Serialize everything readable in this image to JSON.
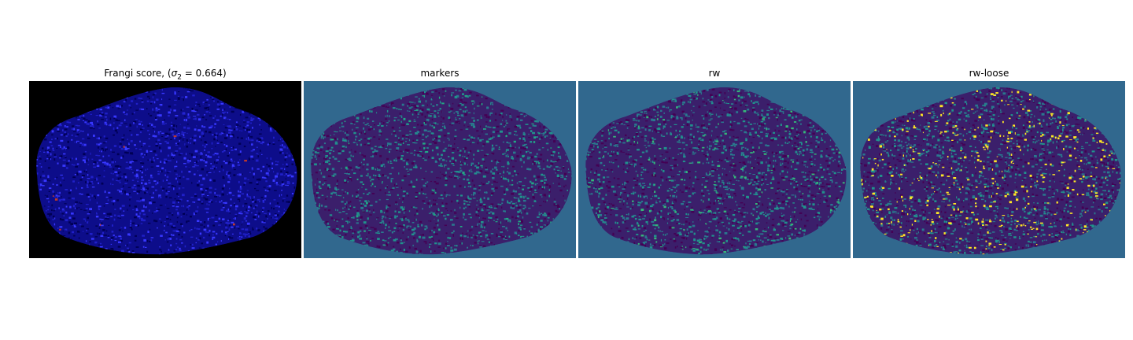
{
  "panels": [
    {
      "title_prefix": "Frangi score, (",
      "sigma_symbol": "σ",
      "sigma_subscript": "2",
      "title_suffix": " = 0.664)",
      "background": "#000000",
      "blob_base": "#0d0d8a",
      "speckle": [
        "#2020c8",
        "#000055",
        "#3838ff"
      ],
      "accent": "#c0392b",
      "icon": "frangi-image"
    },
    {
      "title": "markers",
      "background": "#31688e",
      "blob_base": "#3b1f6b",
      "speckle": [
        "#440154",
        "#2a788e",
        "#21918c"
      ],
      "accent": "#22a884",
      "icon": "markers-image"
    },
    {
      "title": "rw",
      "background": "#31688e",
      "blob_base": "#3b1f6b",
      "speckle": [
        "#440154",
        "#2a788e",
        "#21918c"
      ],
      "accent": "#35b779",
      "icon": "rw-image"
    },
    {
      "title": "rw-loose",
      "background": "#31688e",
      "blob_base": "#3b1f6b",
      "speckle": [
        "#440154",
        "#2a788e",
        "#21918c"
      ],
      "accent": "#fde725",
      "icon": "rw-loose-image"
    }
  ]
}
